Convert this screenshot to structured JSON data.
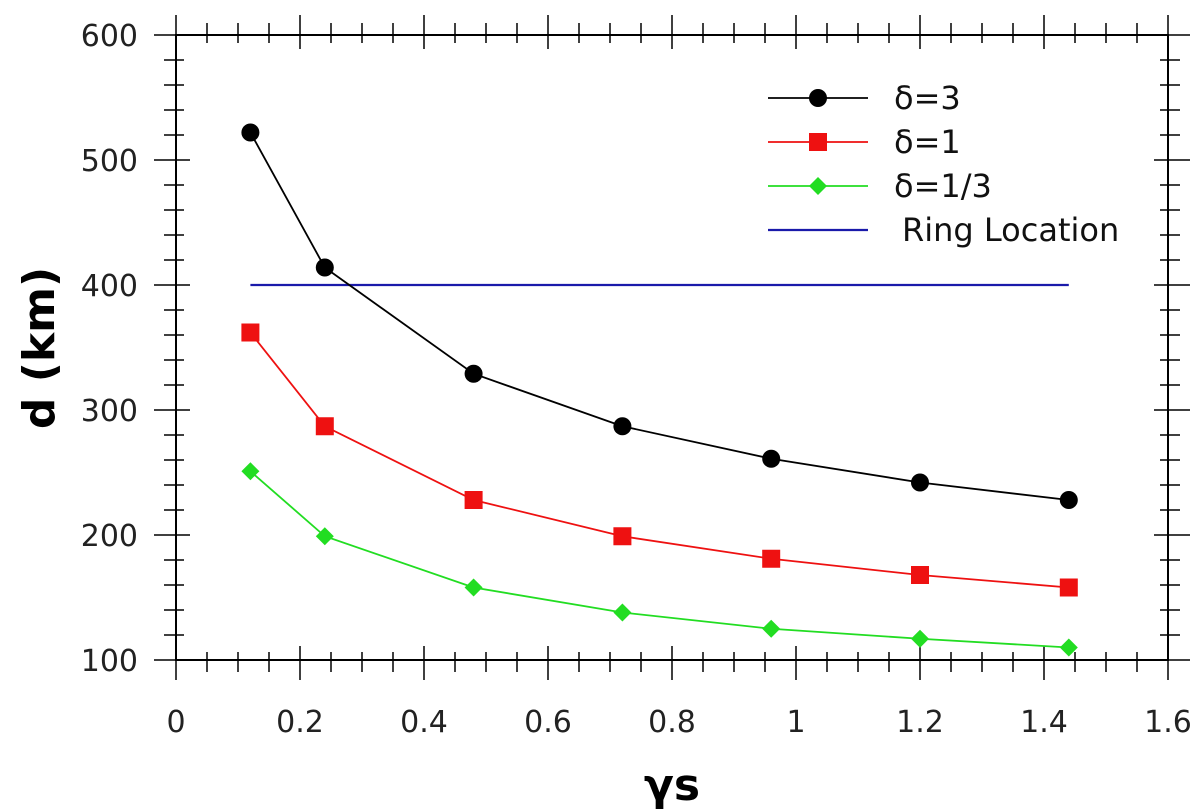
{
  "chart_data": {
    "type": "line",
    "title": "",
    "xlabel": "γs",
    "ylabel": "d (km)",
    "xlim": [
      0,
      1.6
    ],
    "ylim": [
      100,
      600
    ],
    "x_ticks": [
      0,
      0.2,
      0.4,
      0.6,
      0.8,
      1.0,
      1.2,
      1.4,
      1.6
    ],
    "x_tick_labels": [
      "0",
      "0.2",
      "0.4",
      "0.6",
      "0.8",
      "1",
      "1.2",
      "1.4",
      "1.6"
    ],
    "y_ticks": [
      100,
      200,
      300,
      400,
      500,
      600
    ],
    "y_tick_labels": [
      "100",
      "200",
      "300",
      "400",
      "500",
      "600"
    ],
    "grid": false,
    "legend_position": "top-right",
    "series": [
      {
        "name": "δ=3",
        "color": "#000000",
        "marker": "circle",
        "x": [
          0.12,
          0.24,
          0.48,
          0.72,
          0.96,
          1.2,
          1.44
        ],
        "y": [
          522,
          414,
          329,
          287,
          261,
          242,
          228
        ]
      },
      {
        "name": "δ=1",
        "color": "#ee1111",
        "marker": "square",
        "x": [
          0.12,
          0.24,
          0.48,
          0.72,
          0.96,
          1.2,
          1.44
        ],
        "y": [
          362,
          287,
          228,
          199,
          181,
          168,
          158
        ]
      },
      {
        "name": "δ=1/3",
        "color": "#22dd22",
        "marker": "diamond",
        "x": [
          0.12,
          0.24,
          0.48,
          0.72,
          0.96,
          1.2,
          1.44
        ],
        "y": [
          251,
          199,
          158,
          138,
          125,
          117,
          110
        ]
      },
      {
        "name": "Ring Location",
        "color": "#1a1aaa",
        "marker": "none",
        "x": [
          0.12,
          1.44
        ],
        "y": [
          400,
          400
        ]
      }
    ]
  }
}
